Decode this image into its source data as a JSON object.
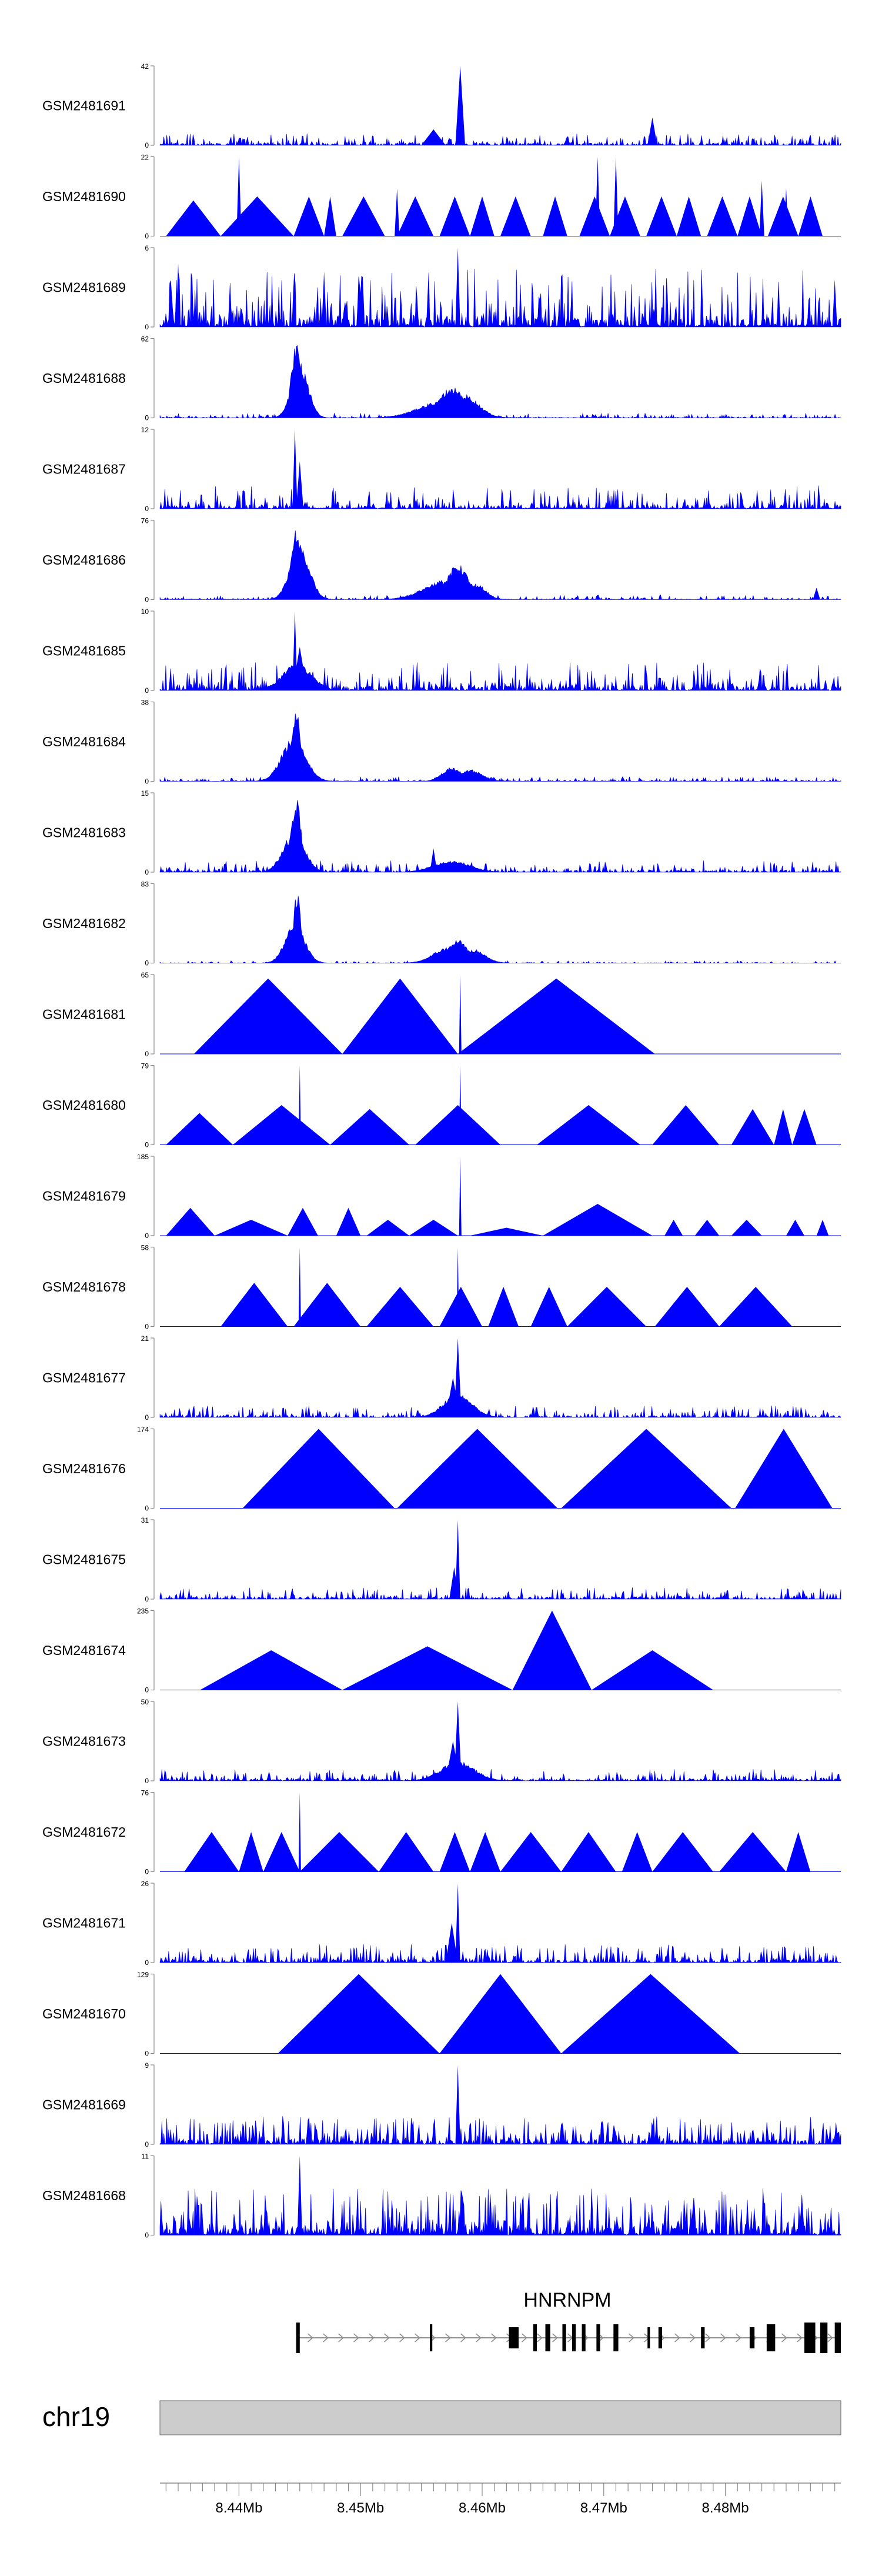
{
  "chart_data": {
    "type": "area",
    "chromosome": "chr19",
    "xlim_mb": [
      8.4335,
      8.4895
    ],
    "x_ticks": [
      {
        "value": 8.44,
        "label": "8.44Mb"
      },
      {
        "value": 8.45,
        "label": "8.45Mb"
      },
      {
        "value": 8.46,
        "label": "8.46Mb"
      },
      {
        "value": 8.47,
        "label": "8.47Mb"
      },
      {
        "value": 8.48,
        "label": "8.48Mb"
      }
    ],
    "series": [
      {
        "name": "GSM2481691",
        "ymax": 42,
        "style": "signal",
        "seed": 11,
        "base": 0.05,
        "density": 0.5,
        "spikes": [
          [
            8.4582,
            1.0,
            0.0004
          ],
          [
            8.474,
            0.35,
            0.0004
          ],
          [
            8.456,
            0.2,
            0.001
          ]
        ],
        "peaks": []
      },
      {
        "name": "GSM2481690",
        "ymax": 22,
        "style": "triangles",
        "seed": 12,
        "tris": [
          [
            8.434,
            8.4385,
            0.45
          ],
          [
            8.4385,
            8.4445,
            0.5
          ],
          [
            8.4445,
            8.447,
            0.5
          ],
          [
            8.447,
            8.448,
            0.5
          ],
          [
            8.4485,
            8.452,
            0.5
          ],
          [
            8.453,
            8.456,
            0.5
          ],
          [
            8.4565,
            8.459,
            0.5
          ],
          [
            8.459,
            8.461,
            0.5
          ],
          [
            8.4615,
            8.464,
            0.5
          ],
          [
            8.465,
            8.467,
            0.5
          ],
          [
            8.468,
            8.4705,
            0.5
          ],
          [
            8.4705,
            8.473,
            0.5
          ],
          [
            8.4735,
            8.476,
            0.5
          ],
          [
            8.476,
            8.478,
            0.5
          ],
          [
            8.4785,
            8.481,
            0.5
          ],
          [
            8.481,
            8.483,
            0.5
          ],
          [
            8.4835,
            8.486,
            0.5
          ],
          [
            8.486,
            8.488,
            0.5
          ]
        ],
        "spikes": [
          [
            8.44,
            1.0,
            0.0002
          ],
          [
            8.453,
            0.6,
            0.0002
          ],
          [
            8.4695,
            1.0,
            0.0002
          ],
          [
            8.471,
            1.0,
            0.0002
          ],
          [
            8.483,
            0.7,
            0.0002
          ],
          [
            8.485,
            0.6,
            0.0002
          ]
        ]
      },
      {
        "name": "GSM2481689",
        "ymax": 6,
        "style": "signal",
        "seed": 13,
        "base": 0.25,
        "density": 0.55,
        "spikes": [
          [
            8.435,
            0.8,
            0.0002
          ],
          [
            8.447,
            0.7,
            0.0002
          ],
          [
            8.458,
            1.0,
            0.0002
          ],
          [
            8.489,
            0.6,
            0.0002
          ]
        ],
        "peaks": []
      },
      {
        "name": "GSM2481688",
        "ymax": 62,
        "style": "signal",
        "seed": 14,
        "base": 0.02,
        "density": 0.4,
        "spikes": [],
        "peaks": [
          [
            8.4447,
            0.95,
            0.0004
          ],
          [
            8.445,
            0.7,
            0.0007
          ],
          [
            8.4575,
            0.4,
            0.001
          ],
          [
            8.4585,
            0.3,
            0.0012
          ],
          [
            8.4568,
            0.22,
            0.002
          ]
        ]
      },
      {
        "name": "GSM2481687",
        "ymax": 12,
        "style": "signal",
        "seed": 15,
        "base": 0.1,
        "density": 0.45,
        "spikes": [
          [
            8.4446,
            1.0,
            0.0002
          ],
          [
            8.445,
            0.6,
            0.0003
          ]
        ],
        "peaks": []
      },
      {
        "name": "GSM2481686",
        "ymax": 76,
        "style": "signal",
        "seed": 16,
        "base": 0.02,
        "density": 0.4,
        "spikes": [
          [
            8.4875,
            0.15,
            0.0003
          ]
        ],
        "peaks": [
          [
            8.4447,
            0.95,
            0.0004
          ],
          [
            8.445,
            0.7,
            0.0008
          ],
          [
            8.458,
            0.45,
            0.0009
          ],
          [
            8.457,
            0.25,
            0.0018
          ],
          [
            8.4595,
            0.2,
            0.0008
          ]
        ]
      },
      {
        "name": "GSM2481685",
        "ymax": 10,
        "style": "signal",
        "seed": 17,
        "base": 0.12,
        "density": 0.5,
        "spikes": [
          [
            8.4446,
            1.0,
            0.0002
          ],
          [
            8.445,
            0.55,
            0.0006
          ]
        ],
        "peaks": [
          [
            8.4448,
            0.35,
            0.0012
          ]
        ]
      },
      {
        "name": "GSM2481684",
        "ymax": 38,
        "style": "signal",
        "seed": 18,
        "base": 0.02,
        "density": 0.4,
        "spikes": [],
        "peaks": [
          [
            8.4447,
            0.95,
            0.0004
          ],
          [
            8.4445,
            0.55,
            0.001
          ],
          [
            8.4575,
            0.18,
            0.0008
          ],
          [
            8.459,
            0.15,
            0.001
          ]
        ]
      },
      {
        "name": "GSM2481683",
        "ymax": 15,
        "style": "signal",
        "seed": 19,
        "base": 0.05,
        "density": 0.45,
        "spikes": [
          [
            8.456,
            0.3,
            0.0003
          ]
        ],
        "peaks": [
          [
            8.4447,
            0.95,
            0.0004
          ],
          [
            8.4445,
            0.5,
            0.0009
          ],
          [
            8.4575,
            0.15,
            0.0015
          ]
        ]
      },
      {
        "name": "GSM2481682",
        "ymax": 83,
        "style": "signal",
        "seed": 20,
        "base": 0.01,
        "density": 0.35,
        "spikes": [],
        "peaks": [
          [
            8.4448,
            0.95,
            0.0003
          ],
          [
            8.4446,
            0.5,
            0.0008
          ],
          [
            8.458,
            0.3,
            0.0008
          ],
          [
            8.4572,
            0.2,
            0.0012
          ],
          [
            8.4592,
            0.18,
            0.001
          ]
        ]
      },
      {
        "name": "GSM2481681",
        "ymax": 65,
        "style": "triangles",
        "seed": 21,
        "tris": [
          [
            8.4363,
            8.4485,
            0.95
          ],
          [
            8.4485,
            8.458,
            0.95
          ],
          [
            8.458,
            8.4742,
            0.95
          ]
        ],
        "spikes": [
          [
            8.4582,
            1.0,
            0.0001
          ]
        ]
      },
      {
        "name": "GSM2481680",
        "ymax": 79,
        "style": "triangles",
        "seed": 22,
        "tris": [
          [
            8.434,
            8.4395,
            0.4
          ],
          [
            8.4395,
            8.4475,
            0.5
          ],
          [
            8.4475,
            8.454,
            0.45
          ],
          [
            8.4545,
            8.4615,
            0.5
          ],
          [
            8.4645,
            8.473,
            0.5
          ],
          [
            8.474,
            8.4795,
            0.5
          ],
          [
            8.4805,
            8.484,
            0.45
          ],
          [
            8.484,
            8.4855,
            0.45
          ],
          [
            8.4855,
            8.4875,
            0.45
          ]
        ],
        "spikes": [
          [
            8.445,
            1.0,
            0.0001
          ],
          [
            8.4582,
            1.0,
            0.0001
          ]
        ]
      },
      {
        "name": "GSM2481679",
        "ymax": 185,
        "style": "triangles",
        "seed": 23,
        "tris": [
          [
            8.434,
            8.438,
            0.35
          ],
          [
            8.438,
            8.444,
            0.2
          ],
          [
            8.444,
            8.4465,
            0.35
          ],
          [
            8.448,
            8.45,
            0.35
          ],
          [
            8.4505,
            8.454,
            0.2
          ],
          [
            8.454,
            8.458,
            0.2
          ],
          [
            8.459,
            8.465,
            0.1
          ],
          [
            8.465,
            8.474,
            0.4
          ],
          [
            8.475,
            8.4765,
            0.2
          ],
          [
            8.4775,
            8.4795,
            0.2
          ],
          [
            8.4805,
            8.483,
            0.2
          ],
          [
            8.485,
            8.4865,
            0.2
          ],
          [
            8.4875,
            8.4885,
            0.2
          ]
        ],
        "spikes": [
          [
            8.4582,
            1.0,
            0.0001
          ]
        ]
      },
      {
        "name": "GSM2481678",
        "ymax": 58,
        "style": "triangles",
        "seed": 24,
        "tris": [
          [
            8.4385,
            8.444,
            0.55
          ],
          [
            8.4445,
            8.45,
            0.55
          ],
          [
            8.4505,
            8.456,
            0.5
          ],
          [
            8.4565,
            8.46,
            0.5
          ],
          [
            8.4605,
            8.463,
            0.5
          ],
          [
            8.464,
            8.467,
            0.5
          ],
          [
            8.467,
            8.4735,
            0.5
          ],
          [
            8.4742,
            8.4795,
            0.5
          ],
          [
            8.4795,
            8.4855,
            0.5
          ]
        ],
        "spikes": [
          [
            8.445,
            1.0,
            0.0001
          ],
          [
            8.458,
            1.0,
            0.0001
          ]
        ]
      },
      {
        "name": "GSM2481677",
        "ymax": 21,
        "style": "signal",
        "seed": 25,
        "base": 0.05,
        "density": 0.45,
        "spikes": [
          [
            8.458,
            1.0,
            0.0003
          ],
          [
            8.4576,
            0.5,
            0.0006
          ]
        ],
        "peaks": [
          [
            8.458,
            0.3,
            0.0012
          ]
        ]
      },
      {
        "name": "GSM2481676",
        "ymax": 174,
        "style": "triangles",
        "seed": 26,
        "tris": [
          [
            8.4403,
            8.4528,
            1.0
          ],
          [
            8.453,
            8.4662,
            1.0
          ],
          [
            8.4665,
            8.4805,
            1.0
          ],
          [
            8.4808,
            8.4888,
            1.0
          ]
        ],
        "spikes": []
      },
      {
        "name": "GSM2481675",
        "ymax": 31,
        "style": "signal",
        "seed": 27,
        "base": 0.05,
        "density": 0.45,
        "spikes": [
          [
            8.458,
            1.0,
            0.0002
          ],
          [
            8.4577,
            0.4,
            0.0004
          ]
        ],
        "peaks": []
      },
      {
        "name": "GSM2481674",
        "ymax": 235,
        "style": "triangles",
        "seed": 28,
        "tris": [
          [
            8.4368,
            8.4485,
            0.5
          ],
          [
            8.4485,
            8.4625,
            0.55
          ],
          [
            8.4625,
            8.469,
            1.0
          ],
          [
            8.469,
            8.479,
            0.5
          ]
        ],
        "spikes": []
      },
      {
        "name": "GSM2481673",
        "ymax": 50,
        "style": "signal",
        "seed": 29,
        "base": 0.05,
        "density": 0.45,
        "spikes": [
          [
            8.458,
            1.0,
            0.0003
          ],
          [
            8.4576,
            0.5,
            0.0006
          ]
        ],
        "peaks": [
          [
            8.458,
            0.25,
            0.0014
          ]
        ]
      },
      {
        "name": "GSM2481672",
        "ymax": 76,
        "style": "triangles",
        "seed": 30,
        "tris": [
          [
            8.4355,
            8.44,
            0.5
          ],
          [
            8.44,
            8.442,
            0.5
          ],
          [
            8.442,
            8.445,
            0.5
          ],
          [
            8.445,
            8.4515,
            0.5
          ],
          [
            8.4515,
            8.456,
            0.5
          ],
          [
            8.4565,
            8.459,
            0.5
          ],
          [
            8.459,
            8.4615,
            0.5
          ],
          [
            8.4615,
            8.4665,
            0.5
          ],
          [
            8.4665,
            8.471,
            0.5
          ],
          [
            8.4715,
            8.474,
            0.5
          ],
          [
            8.474,
            8.479,
            0.5
          ],
          [
            8.4795,
            8.485,
            0.5
          ],
          [
            8.485,
            8.487,
            0.5
          ]
        ],
        "spikes": [
          [
            8.445,
            1.0,
            0.0001
          ]
        ]
      },
      {
        "name": "GSM2481671",
        "ymax": 26,
        "style": "signal",
        "seed": 31,
        "base": 0.08,
        "density": 0.5,
        "spikes": [
          [
            8.458,
            1.0,
            0.0002
          ],
          [
            8.4575,
            0.5,
            0.0005
          ]
        ],
        "peaks": []
      },
      {
        "name": "GSM2481670",
        "ymax": 129,
        "style": "triangles",
        "seed": 32,
        "tris": [
          [
            8.4432,
            8.4565,
            1.0
          ],
          [
            8.4565,
            8.4665,
            1.0
          ],
          [
            8.4665,
            8.4812,
            1.0
          ]
        ],
        "spikes": []
      },
      {
        "name": "GSM2481669",
        "ymax": 9,
        "style": "signal",
        "seed": 33,
        "base": 0.12,
        "density": 0.6,
        "spikes": [
          [
            8.458,
            1.0,
            0.0002
          ]
        ],
        "peaks": []
      },
      {
        "name": "GSM2481668",
        "ymax": 11,
        "style": "signal",
        "seed": 34,
        "base": 0.2,
        "density": 0.6,
        "spikes": [
          [
            8.445,
            1.0,
            0.0002
          ]
        ],
        "peaks": []
      }
    ],
    "gene": {
      "name": "HNRNPM",
      "start_mb": 8.4447,
      "end_mb": 8.4895,
      "exons": [
        [
          8.4447,
          8.445,
          3
        ],
        [
          8.4557,
          8.4559,
          2
        ],
        [
          8.4622,
          8.463,
          1
        ],
        [
          8.4642,
          8.4645,
          2
        ],
        [
          8.4652,
          8.4656,
          2
        ],
        [
          8.4666,
          8.4669,
          2
        ],
        [
          8.4674,
          8.4677,
          2
        ],
        [
          8.4682,
          8.4685,
          2
        ],
        [
          8.4694,
          8.4697,
          2
        ],
        [
          8.4708,
          8.4712,
          2
        ],
        [
          8.4736,
          8.4738,
          1
        ],
        [
          8.4745,
          8.4748,
          1
        ],
        [
          8.478,
          8.4783,
          1
        ],
        [
          8.482,
          8.4824,
          1
        ],
        [
          8.4834,
          8.4841,
          2
        ],
        [
          8.4865,
          8.4874,
          3
        ],
        [
          8.4878,
          8.4884,
          3
        ],
        [
          8.489,
          8.4895,
          3
        ]
      ]
    }
  }
}
